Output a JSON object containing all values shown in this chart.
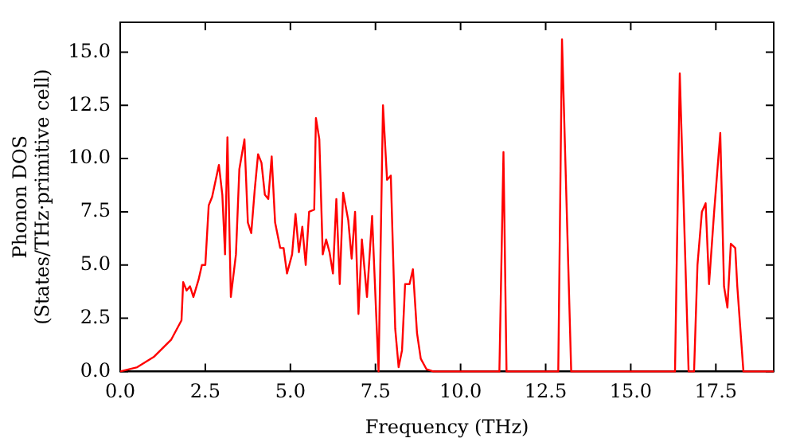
{
  "chart_data": {
    "type": "line",
    "xlabel": "Frequency (THz)",
    "ylabel": "Phonon DOS\n(States/THz·primitive cell)",
    "xlim": [
      0,
      19.2
    ],
    "ylim": [
      0,
      16.4
    ],
    "xticks": [
      {
        "value": 0,
        "label": "0.0"
      },
      {
        "value": 2.5,
        "label": "2.5"
      },
      {
        "value": 5,
        "label": "5.0"
      },
      {
        "value": 7.5,
        "label": "7.5"
      },
      {
        "value": 10,
        "label": "10.0"
      },
      {
        "value": 12.5,
        "label": "12.5"
      },
      {
        "value": 15,
        "label": "15.0"
      },
      {
        "value": 17.5,
        "label": "17.5"
      }
    ],
    "yticks": [
      {
        "value": 0,
        "label": "0.0"
      },
      {
        "value": 2.5,
        "label": "2.5"
      },
      {
        "value": 5,
        "label": "5.0"
      },
      {
        "value": 7.5,
        "label": "7.5"
      },
      {
        "value": 10,
        "label": "10.0"
      },
      {
        "value": 12.5,
        "label": "12.5"
      },
      {
        "value": 15,
        "label": "15.0"
      }
    ],
    "grid": false,
    "legend": false,
    "marker": "none",
    "line_style": "solid",
    "series": [
      {
        "color": "#ff0000",
        "x": [
          0,
          0.5,
          1.0,
          1.5,
          1.8,
          1.85,
          1.95,
          2.05,
          2.15,
          2.3,
          2.4,
          2.5,
          2.6,
          2.7,
          2.9,
          3.0,
          3.08,
          3.15,
          3.25,
          3.4,
          3.5,
          3.65,
          3.75,
          3.85,
          3.95,
          4.05,
          4.15,
          4.25,
          4.35,
          4.45,
          4.55,
          4.7,
          4.8,
          4.9,
          5.05,
          5.15,
          5.25,
          5.35,
          5.45,
          5.55,
          5.7,
          5.75,
          5.85,
          5.95,
          6.05,
          6.15,
          6.25,
          6.35,
          6.45,
          6.55,
          6.7,
          6.8,
          6.9,
          7.0,
          7.1,
          7.25,
          7.4,
          7.59,
          7.72,
          7.84,
          7.95,
          8.08,
          8.18,
          8.28,
          8.37,
          8.5,
          8.6,
          8.72,
          8.83,
          9.0,
          9.2,
          11.14,
          11.26,
          11.35,
          12.87,
          12.98,
          13.25,
          16.3,
          16.44,
          16.7,
          16.86,
          16.96,
          17.09,
          17.2,
          17.3,
          17.45,
          17.63,
          17.74,
          17.84,
          17.94,
          18.07,
          18.13,
          18.31,
          19.2
        ],
        "values": [
          0,
          0.2,
          0.7,
          1.5,
          2.4,
          4.2,
          3.8,
          4.0,
          3.5,
          4.3,
          5.0,
          5.0,
          7.8,
          8.2,
          9.7,
          8.3,
          5.5,
          11.0,
          3.5,
          5.5,
          9.5,
          10.9,
          7.0,
          6.5,
          8.5,
          10.2,
          9.8,
          8.3,
          8.1,
          10.1,
          7.0,
          5.8,
          5.8,
          4.6,
          5.5,
          7.4,
          5.6,
          6.8,
          5.0,
          7.5,
          7.6,
          11.9,
          10.9,
          5.5,
          6.2,
          5.6,
          4.6,
          8.1,
          4.1,
          8.4,
          7.1,
          5.3,
          7.5,
          2.7,
          6.2,
          3.5,
          7.3,
          0,
          12.5,
          9.0,
          9.2,
          2.0,
          0.2,
          1.0,
          4.1,
          4.1,
          4.8,
          1.8,
          0.6,
          0.1,
          0,
          0,
          10.3,
          0,
          0,
          15.6,
          0,
          0,
          14.0,
          0,
          0,
          5.0,
          7.5,
          7.9,
          4.1,
          7.5,
          11.2,
          4.0,
          3.0,
          6.0,
          5.8,
          4.0,
          0,
          0
        ]
      }
    ]
  }
}
